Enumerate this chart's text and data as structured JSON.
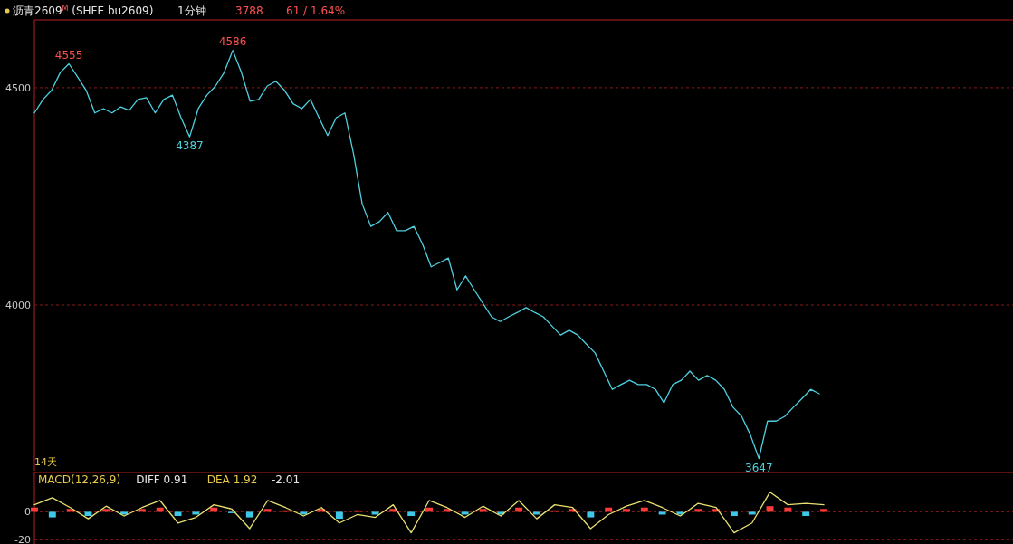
{
  "chart_data": [
    {
      "type": "line",
      "title": "沥青2609$^{M}$ (SHFE bu2609)",
      "subtitle": "1分钟",
      "annotations": [
        "3788",
        "61 / 1.64%",
        "14天",
        {
          "text": "4555",
          "y": 4555
        },
        {
          "text": "4586",
          "y": 4586
        },
        {
          "text": "4387",
          "y": 4387
        },
        {
          "text": "3647",
          "y": 3647
        }
      ],
      "categories": [
        null,
        null,
        null,
        null,
        null,
        null,
        null,
        null,
        null,
        null,
        null,
        null,
        null,
        null,
        null,
        null,
        null,
        null,
        null,
        null,
        null,
        null,
        null,
        null,
        null,
        null,
        null,
        null,
        null,
        null,
        null,
        null,
        null,
        null,
        null,
        null,
        null,
        null,
        null,
        null,
        null,
        null,
        null,
        null,
        null,
        null,
        null,
        null,
        null,
        null,
        null,
        null,
        null,
        null,
        null,
        null,
        null,
        null,
        null,
        null,
        null,
        null,
        null,
        null,
        null,
        null,
        null,
        null,
        null,
        null,
        null,
        null,
        null,
        null,
        null,
        null,
        null,
        null,
        null,
        null,
        null,
        null,
        null,
        null,
        null,
        null,
        null,
        null,
        null,
        null,
        null,
        null
      ],
      "series": [
        {
          "color": "#4fd0e0",
          "values": [
            4442,
            4473,
            4494,
            4535,
            4555,
            4525,
            4494,
            4442,
            4452,
            4442,
            4456,
            4448,
            4473,
            4477,
            4442,
            4473,
            4483,
            4431,
            4387,
            4452,
            4483,
            4504,
            4535,
            4586,
            4535,
            4469,
            4473,
            4504,
            4515,
            4494,
            4463,
            4452,
            4473,
            4431,
            4390,
            4431,
            4442,
            4348,
            4233,
            4181,
            4192,
            4213,
            4171,
            4171,
            4181,
            4140,
            4088,
            4098,
            4108,
            4035,
            4067,
            4035,
            4004,
            3973,
            3962,
            3973,
            3983,
            3994,
            3983,
            3973,
            3952,
            3931,
            3942,
            3931,
            3910,
            3890,
            3848,
            3806,
            3817,
            3827,
            3817,
            3817,
            3806,
            3775,
            3817,
            3827,
            3848,
            3827,
            3838,
            3827,
            3806,
            3765,
            3744,
            3702,
            3647,
            3733,
            3733,
            3744,
            3765,
            3785,
            3806,
            3796
          ]
        }
      ],
      "ylim": [
        3619,
        4656
      ],
      "yticks": [
        4000,
        4500
      ],
      "grid": "y"
    },
    {
      "type": "line",
      "annotations": [
        "MACD(12,26,9)",
        "DIFF 0.91",
        "DEA 1.92",
        "-2.01"
      ],
      "categories": [
        null,
        null,
        null,
        null,
        null,
        null,
        null,
        null,
        null,
        null,
        null,
        null,
        null,
        null,
        null,
        null,
        null,
        null,
        null,
        null,
        null,
        null,
        null,
        null,
        null,
        null,
        null,
        null,
        null,
        null,
        null,
        null,
        null,
        null,
        null,
        null,
        null,
        null,
        null,
        null,
        null,
        null,
        null,
        null,
        null
      ],
      "series": [
        {
          "type": "bar",
          "values": [
            3,
            -4,
            2,
            -3,
            2,
            -2,
            2,
            3,
            -3,
            -2,
            3,
            -1,
            -4,
            2,
            1,
            -2,
            2,
            -5,
            1,
            -2,
            2,
            -3,
            3,
            2,
            -2,
            2,
            -2,
            3,
            -2,
            1,
            2,
            -4,
            3,
            2,
            3,
            -2,
            -2,
            2,
            2,
            -3,
            -2,
            4,
            3,
            -3,
            2
          ],
          "colors": [
            "#ff3c3c",
            "#3cc8e6",
            "#ff3c3c",
            "#3cc8e6",
            "#ff3c3c",
            "#3cc8e6",
            "#ff3c3c",
            "#ff3c3c",
            "#3cc8e6",
            "#3cc8e6",
            "#ff3c3c",
            "#3cc8e6",
            "#3cc8e6",
            "#ff3c3c",
            "#ff3c3c",
            "#3cc8e6",
            "#ff3c3c",
            "#3cc8e6",
            "#ff3c3c",
            "#3cc8e6",
            "#ff3c3c",
            "#3cc8e6",
            "#ff3c3c",
            "#ff3c3c",
            "#3cc8e6",
            "#ff3c3c",
            "#3cc8e6",
            "#ff3c3c",
            "#3cc8e6",
            "#ff3c3c",
            "#ff3c3c",
            "#3cc8e6",
            "#ff3c3c",
            "#ff3c3c",
            "#ff3c3c",
            "#3cc8e6",
            "#3cc8e6",
            "#ff3c3c",
            "#ff3c3c",
            "#3cc8e6",
            "#3cc8e6",
            "#ff3c3c",
            "#ff3c3c",
            "#3cc8e6",
            "#ff3c3c"
          ]
        },
        {
          "color": "#e8e070",
          "values": [
            5,
            10,
            3,
            -5,
            4,
            -3,
            3,
            8,
            -8,
            -4,
            5,
            2,
            -12,
            8,
            3,
            -3,
            3,
            -8,
            -2,
            -4,
            5,
            -15,
            8,
            3,
            -4,
            4,
            -3,
            8,
            -5,
            5,
            3,
            -12,
            -2,
            4,
            8,
            3,
            -3,
            6,
            3,
            -15,
            -8,
            14,
            5,
            6,
            5
          ]
        }
      ],
      "ylim": [
        -23,
        28
      ],
      "yticks": [
        0,
        -20
      ],
      "grid": "y"
    }
  ]
}
